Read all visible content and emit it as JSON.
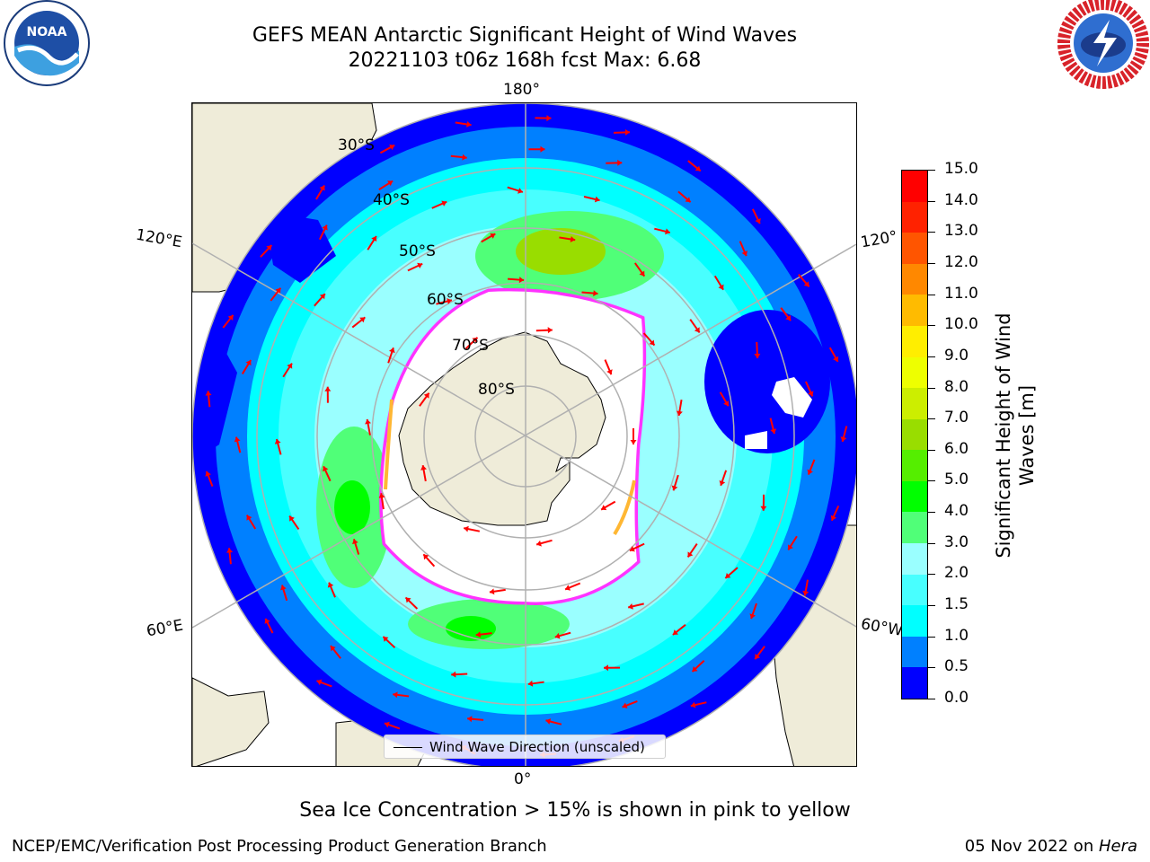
{
  "header": {
    "title_line1": "GEFS MEAN Antarctic Significant Height of Wind Waves",
    "title_line2": "20221103 t06z 168h fcst   Max: 6.68"
  },
  "logos": {
    "noaa": {
      "icon": "noaa-logo-icon",
      "text": "NOAA",
      "ring_text": "NATIONAL OCEANIC AND ATMOSPHERIC ADMINISTRATION · U.S. DEPARTMENT OF COMMERCE"
    },
    "nws": {
      "icon": "nws-logo-icon",
      "ring_text": "NATIONAL WEATHER SERVICE"
    }
  },
  "map": {
    "projection": "south-polar-stereographic",
    "longitude_labels": [
      "180°",
      "120°E",
      "120°",
      "60°E",
      "60°W",
      "0°"
    ],
    "latitude_labels": [
      "30°S",
      "40°S",
      "50°S",
      "60°S",
      "70°S",
      "80°S"
    ],
    "legend_label": "Wind Wave Direction (unscaled)",
    "arrow_color": "#ff0000",
    "land_color": "#efecd9",
    "sea_ice_colors": [
      "#ff33ff",
      "#ffb733",
      "#ffff33"
    ]
  },
  "colorbar": {
    "title": "Significant Height of Wind Waves [m]",
    "tick_labels": [
      "0.0",
      "0.5",
      "1.0",
      "1.5",
      "2.0",
      "3.0",
      "4.0",
      "5.0",
      "6.0",
      "7.0",
      "8.0",
      "9.0",
      "10.0",
      "11.0",
      "12.0",
      "13.0",
      "14.0",
      "15.0"
    ],
    "colors": [
      "#0000ff",
      "#0080ff",
      "#00ffff",
      "#48ffff",
      "#9affff",
      "#50ff78",
      "#00ff00",
      "#55ee00",
      "#99dd00",
      "#ccee00",
      "#eeff00",
      "#ffee00",
      "#ffbb00",
      "#ff8800",
      "#ff5500",
      "#ff2200",
      "#ff0000"
    ]
  },
  "footer": {
    "subtitle": "Sea Ice Concentration > 15% is shown in pink to yellow",
    "left": "NCEP/EMC/Verification Post Processing Product Generation Branch",
    "right_date": "05 Nov 2022 on ",
    "right_machine": "Hera"
  }
}
